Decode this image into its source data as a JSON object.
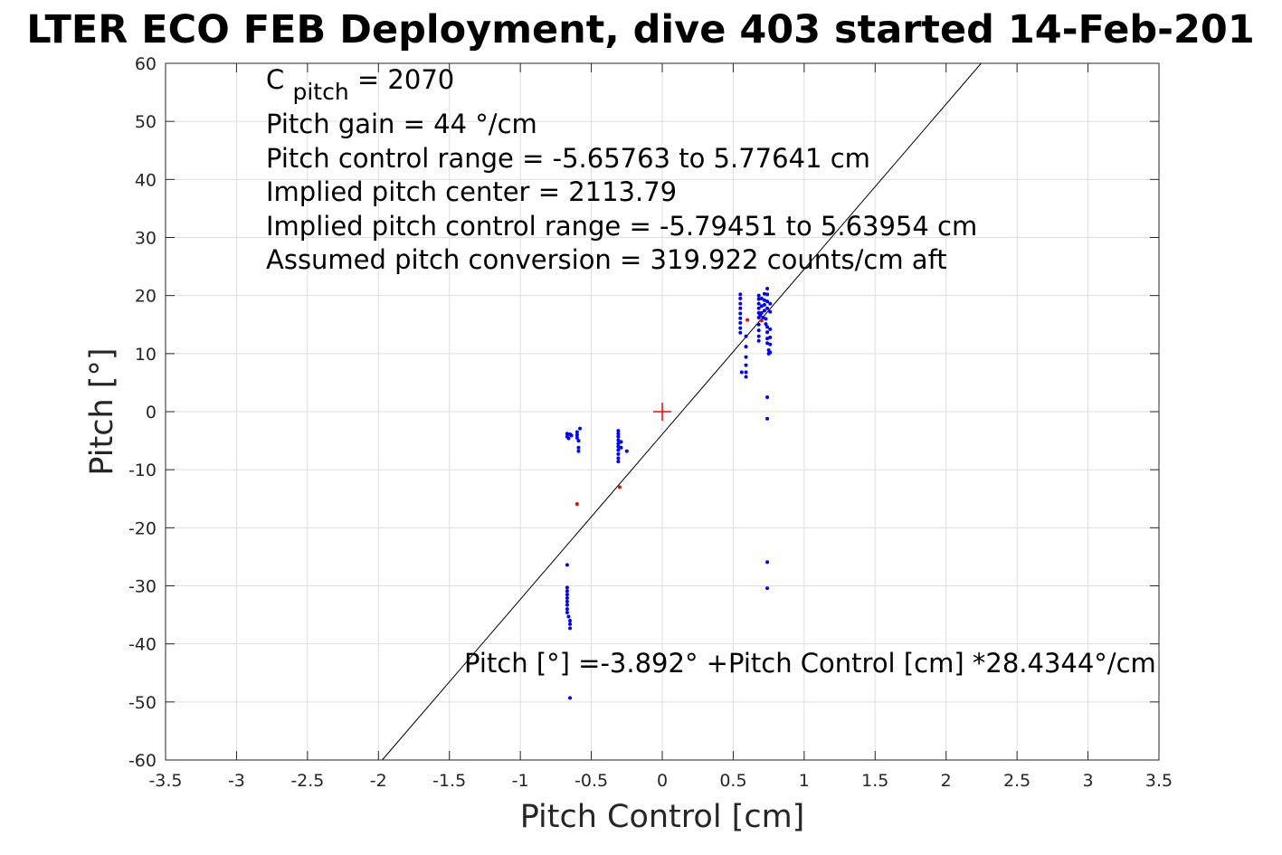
{
  "chart_data": {
    "type": "scatter",
    "title": "LTER ECO FEB Deployment, dive 403 started 14-Feb-201",
    "xlabel": "Pitch Control [cm]",
    "ylabel": "Pitch [°]",
    "xlim": [
      -3.5,
      3.5
    ],
    "ylim": [
      -60,
      60
    ],
    "xticks": [
      -3.5,
      -3,
      -2.5,
      -2,
      -1.5,
      -1,
      -0.5,
      0,
      0.5,
      1,
      1.5,
      2,
      2.5,
      3,
      3.5
    ],
    "xtick_labels": [
      "-3.5",
      "-3",
      "-2.5",
      "-2",
      "-1.5",
      "-1",
      "-0.5",
      "0",
      "0.5",
      "1",
      "1.5",
      "2",
      "2.5",
      "3",
      "3.5"
    ],
    "yticks": [
      60,
      50,
      40,
      30,
      20,
      10,
      0,
      -10,
      -20,
      -30,
      -40,
      -50,
      -60
    ],
    "ytick_labels": [
      "60",
      "50",
      "40",
      "30",
      "20",
      "10",
      "0",
      "-10",
      "-20",
      "-30",
      "-40",
      "-50",
      "-60"
    ],
    "grid": true,
    "annotations": {
      "c_pitch_base": "C",
      "c_pitch_sub": "pitch",
      "c_pitch_value": " = 2070",
      "lines": [
        "Pitch gain = 44 °/cm",
        "Pitch control range = -5.65763 to 5.77641 cm",
        "Implied pitch center = 2113.79",
        "Implied pitch control range = -5.79451 to 5.63954 cm",
        "Assumed pitch conversion = 319.922 counts/cm aft"
      ],
      "fit_equation": "Pitch [°] =-3.892° +Pitch Control [cm] *28.4344°/cm"
    },
    "fit_line": {
      "intercept": -3.892,
      "slope": 28.4344,
      "color": "#000000"
    },
    "center_marker": {
      "x": 0,
      "y": 0,
      "color": "#ff0000"
    },
    "series": [
      {
        "color": "#0000ff",
        "points": [
          [
            -0.67,
            -3.8
          ],
          [
            -0.67,
            -4.3
          ],
          [
            -0.66,
            -4.6
          ],
          [
            -0.65,
            -3.9
          ],
          [
            -0.64,
            -4.1
          ],
          [
            -0.6,
            -3.5
          ],
          [
            -0.6,
            -4.0
          ],
          [
            -0.6,
            -4.5
          ],
          [
            -0.59,
            -5.0
          ],
          [
            -0.59,
            -6.2
          ],
          [
            -0.59,
            -6.8
          ],
          [
            -0.58,
            -2.9
          ],
          [
            -0.31,
            -3.3
          ],
          [
            -0.31,
            -3.8
          ],
          [
            -0.31,
            -4.3
          ],
          [
            -0.31,
            -4.9
          ],
          [
            -0.31,
            -5.5
          ],
          [
            -0.31,
            -6.0
          ],
          [
            -0.31,
            -6.6
          ],
          [
            -0.31,
            -7.3
          ],
          [
            -0.31,
            -8.0
          ],
          [
            -0.31,
            -8.6
          ],
          [
            -0.29,
            -5.2
          ],
          [
            -0.29,
            -6.2
          ],
          [
            -0.25,
            -6.8
          ],
          [
            -0.67,
            -26.4
          ],
          [
            -0.67,
            -30.3
          ],
          [
            -0.67,
            -30.9
          ],
          [
            -0.67,
            -31.5
          ],
          [
            -0.67,
            -32.1
          ],
          [
            -0.67,
            -32.7
          ],
          [
            -0.67,
            -33.3
          ],
          [
            -0.67,
            -34.0
          ],
          [
            -0.67,
            -34.6
          ],
          [
            -0.66,
            -35.3
          ],
          [
            -0.65,
            -36.0
          ],
          [
            -0.65,
            -36.6
          ],
          [
            -0.65,
            -37.3
          ],
          [
            -0.65,
            -49.3
          ],
          [
            0.55,
            20.2
          ],
          [
            0.55,
            19.5
          ],
          [
            0.55,
            18.6
          ],
          [
            0.55,
            17.8
          ],
          [
            0.55,
            16.9
          ],
          [
            0.55,
            16.1
          ],
          [
            0.55,
            15.3
          ],
          [
            0.55,
            14.4
          ],
          [
            0.55,
            13.6
          ],
          [
            0.56,
            6.8
          ],
          [
            0.59,
            13.0
          ],
          [
            0.59,
            11.2
          ],
          [
            0.59,
            9.4
          ],
          [
            0.59,
            8.0
          ],
          [
            0.59,
            6.8
          ],
          [
            0.59,
            6.0
          ],
          [
            0.68,
            20.0
          ],
          [
            0.68,
            19.4
          ],
          [
            0.68,
            18.6
          ],
          [
            0.68,
            17.8
          ],
          [
            0.68,
            17.0
          ],
          [
            0.68,
            16.2
          ],
          [
            0.68,
            15.0
          ],
          [
            0.68,
            14.0
          ],
          [
            0.68,
            13.0
          ],
          [
            0.68,
            12.2
          ],
          [
            0.69,
            16.6
          ],
          [
            0.7,
            19.5
          ],
          [
            0.7,
            18.2
          ],
          [
            0.7,
            17.0
          ],
          [
            0.71,
            16.2
          ],
          [
            0.72,
            20.3
          ],
          [
            0.72,
            19.2
          ],
          [
            0.72,
            18.4
          ],
          [
            0.72,
            17.4
          ],
          [
            0.73,
            16.0
          ],
          [
            0.73,
            15.1
          ],
          [
            0.74,
            21.2
          ],
          [
            0.74,
            20.2
          ],
          [
            0.74,
            19.0
          ],
          [
            0.74,
            17.8
          ],
          [
            0.74,
            14.6
          ],
          [
            0.74,
            13.7
          ],
          [
            0.74,
            12.6
          ],
          [
            0.74,
            11.8
          ],
          [
            0.75,
            10.6
          ],
          [
            0.75,
            10.0
          ],
          [
            0.76,
            18.6
          ],
          [
            0.76,
            17.2
          ],
          [
            0.76,
            14.2
          ],
          [
            0.76,
            12.8
          ],
          [
            0.76,
            11.6
          ],
          [
            0.76,
            10.2
          ],
          [
            0.74,
            2.5
          ],
          [
            0.74,
            -1.2
          ],
          [
            0.74,
            -25.9
          ],
          [
            0.74,
            -30.4
          ]
        ]
      },
      {
        "color": "#ff0000",
        "points": [
          [
            -0.6,
            -15.9
          ],
          [
            -0.3,
            -13.0
          ],
          [
            0.6,
            15.8
          ],
          [
            0.7,
            15.7
          ]
        ]
      }
    ]
  }
}
